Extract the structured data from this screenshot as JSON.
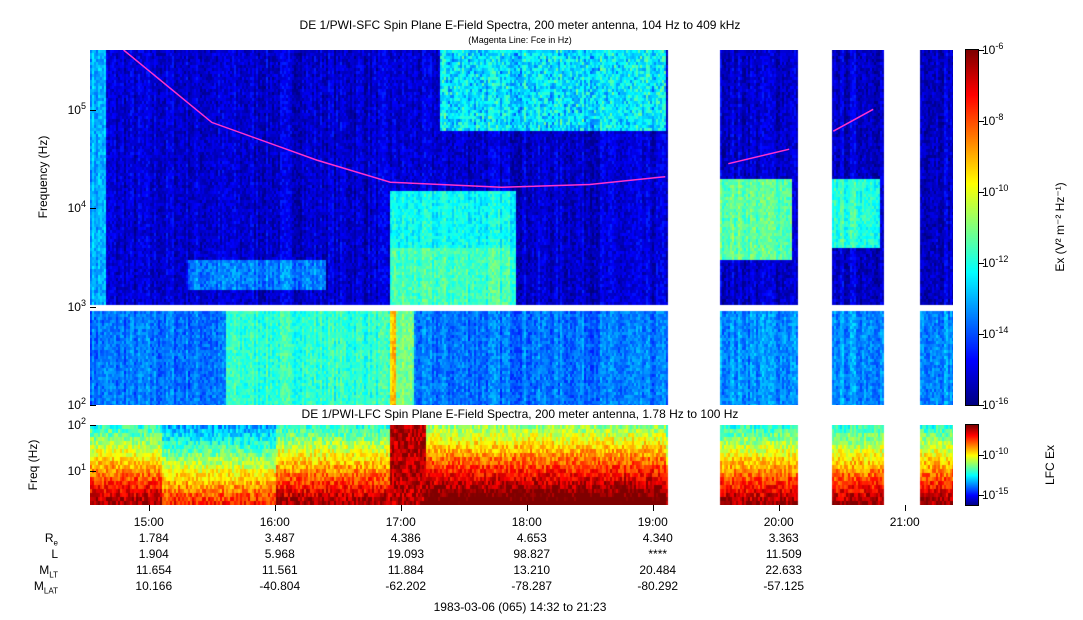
{
  "chart_data": [
    {
      "type": "heatmap",
      "title": "DE 1/PWI-SFC  Spin Plane E-Field Spectra, 200 meter antenna, 104 Hz to 409 kHz",
      "subtitle": "(Magenta Line: Fce in Hz)",
      "ylabel": "Frequency (Hz)",
      "yscale": "log",
      "ylim": [
        100,
        409000
      ],
      "ytick_labels": [
        {
          "base": "10",
          "exp": "2",
          "value": 100
        },
        {
          "base": "10",
          "exp": "3",
          "value": 1000
        },
        {
          "base": "10",
          "exp": "4",
          "value": 10000
        },
        {
          "base": "10",
          "exp": "5",
          "value": 100000
        }
      ],
      "xlim": [
        "14:32",
        "21:23"
      ],
      "colorbar": {
        "label": "Ex (V² m⁻² Hz⁻¹)",
        "scale": "log",
        "range": [
          1e-16,
          1e-06
        ],
        "tick_exponents": [
          "-6",
          "-8",
          "-10",
          "-12",
          "-14",
          "-16"
        ],
        "colormap": "jet"
      },
      "data_gaps": [
        [
          "19:07",
          "19:32"
        ],
        [
          "20:09",
          "20:25"
        ],
        [
          "20:50",
          "21:07"
        ]
      ],
      "fce_line": {
        "color": "#ff33cc",
        "segments": [
          [
            [
              "14:48",
              440000
            ],
            [
              "15:30",
              75000
            ],
            [
              "16:20",
              31000
            ],
            [
              "16:55",
              18500
            ],
            [
              "17:48",
              16400
            ],
            [
              "18:30",
              17500
            ],
            [
              "19:06",
              21000
            ]
          ],
          [
            [
              "19:36",
              28500
            ],
            [
              "20:05",
              40000
            ]
          ],
          [
            [
              "20:26",
              61000
            ],
            [
              "20:45",
              102000
            ]
          ]
        ]
      }
    },
    {
      "type": "heatmap",
      "title": "DE 1/PWI-LFC  Spin Plane E-Field Spectra, 200 meter antenna, 1.78 Hz to 100 Hz",
      "ylabel": "Freq (Hz)",
      "yscale": "log",
      "ylim": [
        1.78,
        100
      ],
      "ytick_labels": [
        {
          "base": "10",
          "exp": "1",
          "value": 10
        },
        {
          "base": "10",
          "exp": "2",
          "value": 100
        }
      ],
      "colorbar": {
        "label": "LFC Ex",
        "scale": "log",
        "tick_exponents": [
          "-10",
          "-15"
        ],
        "colormap": "jet"
      },
      "data_gaps": [
        [
          "19:07",
          "19:32"
        ],
        [
          "20:09",
          "20:25"
        ],
        [
          "20:50",
          "21:07"
        ]
      ]
    }
  ],
  "x_ticks": [
    "15:00",
    "16:00",
    "17:00",
    "18:00",
    "19:00",
    "20:00",
    "21:00"
  ],
  "ephemeris": [
    {
      "label": "R",
      "sub": "e",
      "values": [
        "1.784",
        "3.487",
        "4.386",
        "4.653",
        "4.340",
        "3.363"
      ]
    },
    {
      "label": "L",
      "sub": "",
      "values": [
        "1.904",
        "5.968",
        "19.093",
        "98.827",
        "****",
        "11.509"
      ]
    },
    {
      "label": "M",
      "sub": "LT",
      "values": [
        "11.654",
        "11.561",
        "11.884",
        "13.210",
        "20.484",
        "22.633"
      ]
    },
    {
      "label": "M",
      "sub": "LAT",
      "values": [
        "10.166",
        "-40.804",
        "-62.202",
        "-78.287",
        "-80.292",
        "-57.125"
      ]
    }
  ],
  "footer": "1983-03-06 (065) 14:32 to 21:23"
}
